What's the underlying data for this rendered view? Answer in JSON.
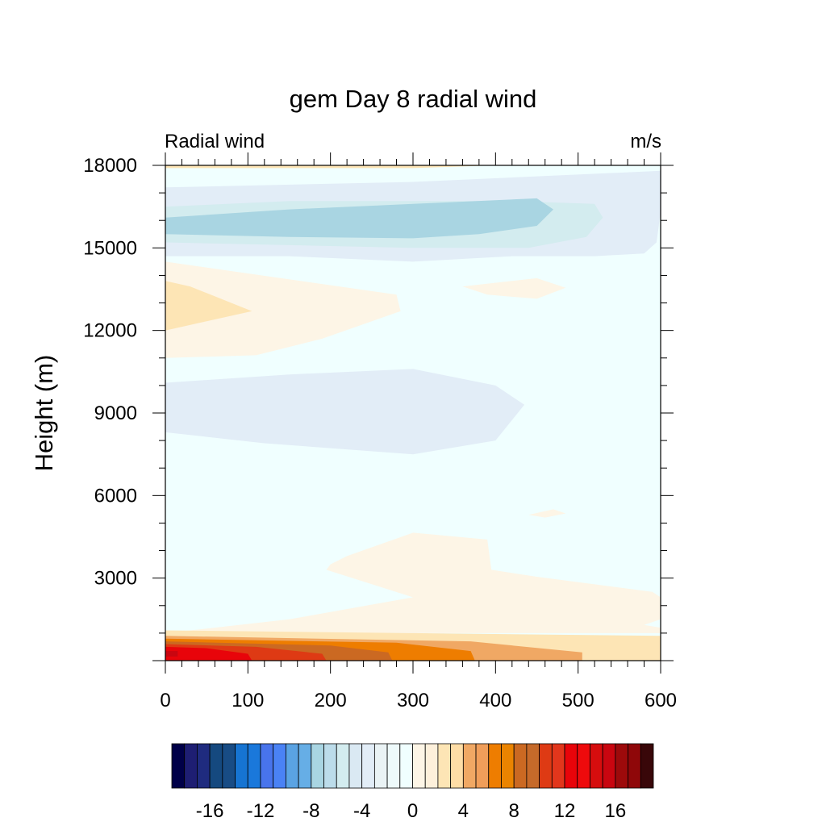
{
  "chart_data": {
    "type": "contour",
    "title": "gem Day 8 radial wind",
    "left_string": "Radial wind",
    "right_string": "m/s",
    "ylabel": "Height (m)",
    "xlabel": "",
    "xlim": [
      0,
      600
    ],
    "ylim": [
      0,
      18000
    ],
    "x_ticks": [
      0,
      100,
      200,
      300,
      400,
      500,
      600
    ],
    "y_ticks": [
      3000,
      6000,
      9000,
      12000,
      15000,
      18000
    ],
    "x_tick_labels": [
      "0",
      "100",
      "200",
      "300",
      "400",
      "500",
      "600"
    ],
    "y_tick_labels": [
      "3000",
      "6000",
      "9000",
      "12000",
      "15000",
      "18000"
    ],
    "background_color": "#f0ffff",
    "regions": [
      {
        "level": "0 to 1",
        "color": "#fdf5e6",
        "points": [
          [
            0,
            11000
          ],
          [
            0,
            14500
          ],
          [
            280,
            13300
          ],
          [
            285,
            12700
          ],
          [
            190,
            11700
          ],
          [
            110,
            11100
          ]
        ]
      },
      {
        "level": "1 to 2",
        "color": "#fde5b5",
        "points": [
          [
            0,
            12000
          ],
          [
            0,
            13800
          ],
          [
            30,
            13600
          ],
          [
            105,
            12700
          ],
          [
            60,
            12400
          ]
        ]
      },
      {
        "level": "0 to 1",
        "color": "#fdf5e6",
        "points": [
          [
            360,
            13600
          ],
          [
            450,
            13900
          ],
          [
            485,
            13550
          ],
          [
            450,
            13150
          ],
          [
            390,
            13300
          ]
        ]
      },
      {
        "level": "0 to 1",
        "color": "#fdf5e6",
        "points": [
          [
            440,
            5300
          ],
          [
            470,
            5500
          ],
          [
            485,
            5350
          ],
          [
            460,
            5200
          ]
        ]
      },
      {
        "level": "-1 to 0",
        "color": "#e2edf7",
        "points": [
          [
            0,
            8300
          ],
          [
            120,
            7900
          ],
          [
            300,
            7500
          ],
          [
            400,
            8000
          ],
          [
            435,
            9300
          ],
          [
            400,
            10000
          ],
          [
            300,
            10600
          ],
          [
            150,
            10400
          ],
          [
            0,
            10100
          ]
        ]
      },
      {
        "level": "-1 to 0",
        "color": "#e2edf7",
        "points": [
          [
            0,
            14700
          ],
          [
            150,
            14700
          ],
          [
            300,
            14500
          ],
          [
            420,
            14700
          ],
          [
            520,
            14700
          ],
          [
            580,
            14800
          ],
          [
            595,
            15200
          ],
          [
            600,
            16300
          ],
          [
            600,
            17800
          ],
          [
            300,
            17400
          ],
          [
            0,
            17200
          ]
        ]
      },
      {
        "level": "-2 to -1",
        "color": "#d3ecef",
        "points": [
          [
            0,
            15200
          ],
          [
            300,
            15000
          ],
          [
            440,
            15000
          ],
          [
            510,
            15400
          ],
          [
            530,
            16100
          ],
          [
            520,
            16600
          ],
          [
            420,
            16700
          ],
          [
            300,
            16700
          ],
          [
            150,
            16700
          ],
          [
            0,
            16500
          ]
        ]
      },
      {
        "level": "-3 to -2",
        "color": "#a9d5e2",
        "points": [
          [
            0,
            15500
          ],
          [
            150,
            15400
          ],
          [
            300,
            15350
          ],
          [
            380,
            15500
          ],
          [
            450,
            15800
          ],
          [
            470,
            16400
          ],
          [
            450,
            16800
          ],
          [
            300,
            16600
          ],
          [
            150,
            16400
          ],
          [
            0,
            16100
          ]
        ]
      },
      {
        "level": "0 to 1",
        "color": "#fdf5e6",
        "points": [
          [
            0,
            1000
          ],
          [
            150,
            1500
          ],
          [
            300,
            2300
          ],
          [
            195,
            3300
          ],
          [
            200,
            3500
          ],
          [
            220,
            3800
          ],
          [
            300,
            4650
          ],
          [
            390,
            4400
          ],
          [
            395,
            3300
          ],
          [
            450,
            3050
          ],
          [
            590,
            2500
          ],
          [
            600,
            2300
          ],
          [
            600,
            1500
          ],
          [
            580,
            1300
          ],
          [
            600,
            1200
          ],
          [
            600,
            1000
          ]
        ]
      },
      {
        "level": "1 to 2",
        "color": "#fde5b5",
        "points": [
          [
            0,
            0
          ],
          [
            600,
            0
          ],
          [
            600,
            900
          ],
          [
            300,
            1000
          ],
          [
            0,
            1100
          ]
        ]
      },
      {
        "level": "2 to 3",
        "color": "#f0a864",
        "points": [
          [
            0,
            0
          ],
          [
            505,
            0
          ],
          [
            505,
            300
          ],
          [
            370,
            700
          ],
          [
            0,
            900
          ]
        ]
      },
      {
        "level": "3 to 4",
        "color": "#ee7d00",
        "points": [
          [
            0,
            0
          ],
          [
            375,
            0
          ],
          [
            370,
            350
          ],
          [
            280,
            650
          ],
          [
            0,
            800
          ]
        ]
      },
      {
        "level": "4 to 5",
        "color": "#cb6922",
        "points": [
          [
            0,
            0
          ],
          [
            275,
            0
          ],
          [
            270,
            300
          ],
          [
            200,
            550
          ],
          [
            0,
            700
          ]
        ]
      },
      {
        "level": "5 to 6",
        "color": "#de3a14",
        "points": [
          [
            0,
            0
          ],
          [
            195,
            0
          ],
          [
            190,
            250
          ],
          [
            110,
            500
          ],
          [
            0,
            600
          ]
        ]
      },
      {
        "level": "6 to 7",
        "color": "#e8040a",
        "points": [
          [
            0,
            0
          ],
          [
            105,
            0
          ],
          [
            100,
            250
          ],
          [
            50,
            450
          ],
          [
            0,
            500
          ]
        ]
      },
      {
        "level": "7 to 8",
        "color": "#c90610",
        "points": [
          [
            0,
            150
          ],
          [
            15,
            150
          ],
          [
            15,
            350
          ],
          [
            0,
            350
          ]
        ]
      },
      {
        "level": "0 to 1",
        "color": "#fde5b5",
        "points": [
          [
            0,
            17900
          ],
          [
            300,
            17900
          ],
          [
            400,
            18000
          ],
          [
            0,
            18000
          ]
        ]
      }
    ],
    "colorbar": {
      "colors": [
        "#000048",
        "#1e1e73",
        "#1f2b7f",
        "#15497f",
        "#184c85",
        "#1674d2",
        "#1a78db",
        "#4874ec",
        "#4a82f5",
        "#5aa3e3",
        "#66aee6",
        "#a9d5e2",
        "#bcdcea",
        "#d3ecef",
        "#dae9f3",
        "#e2edf7",
        "#eaf3f5",
        "#eefafb",
        "#f0ffff",
        "#fdf5e6",
        "#fdf0db",
        "#fde5b5",
        "#fedda6",
        "#f0a864",
        "#f09e5a",
        "#ee7d00",
        "#eb8400",
        "#cb6922",
        "#c66a2a",
        "#de3a14",
        "#e2361c",
        "#e8040a",
        "#ee0a0c",
        "#d60d0e",
        "#c90610",
        "#9d0a0b",
        "#8f0709",
        "#390709"
      ],
      "tick_labels": [
        "-16",
        "-12",
        "-8",
        "-4",
        "0",
        "4",
        "8",
        "12",
        "16"
      ],
      "tick_values": [
        -16,
        -12,
        -8,
        -4,
        0,
        4,
        8,
        12,
        16
      ]
    }
  }
}
